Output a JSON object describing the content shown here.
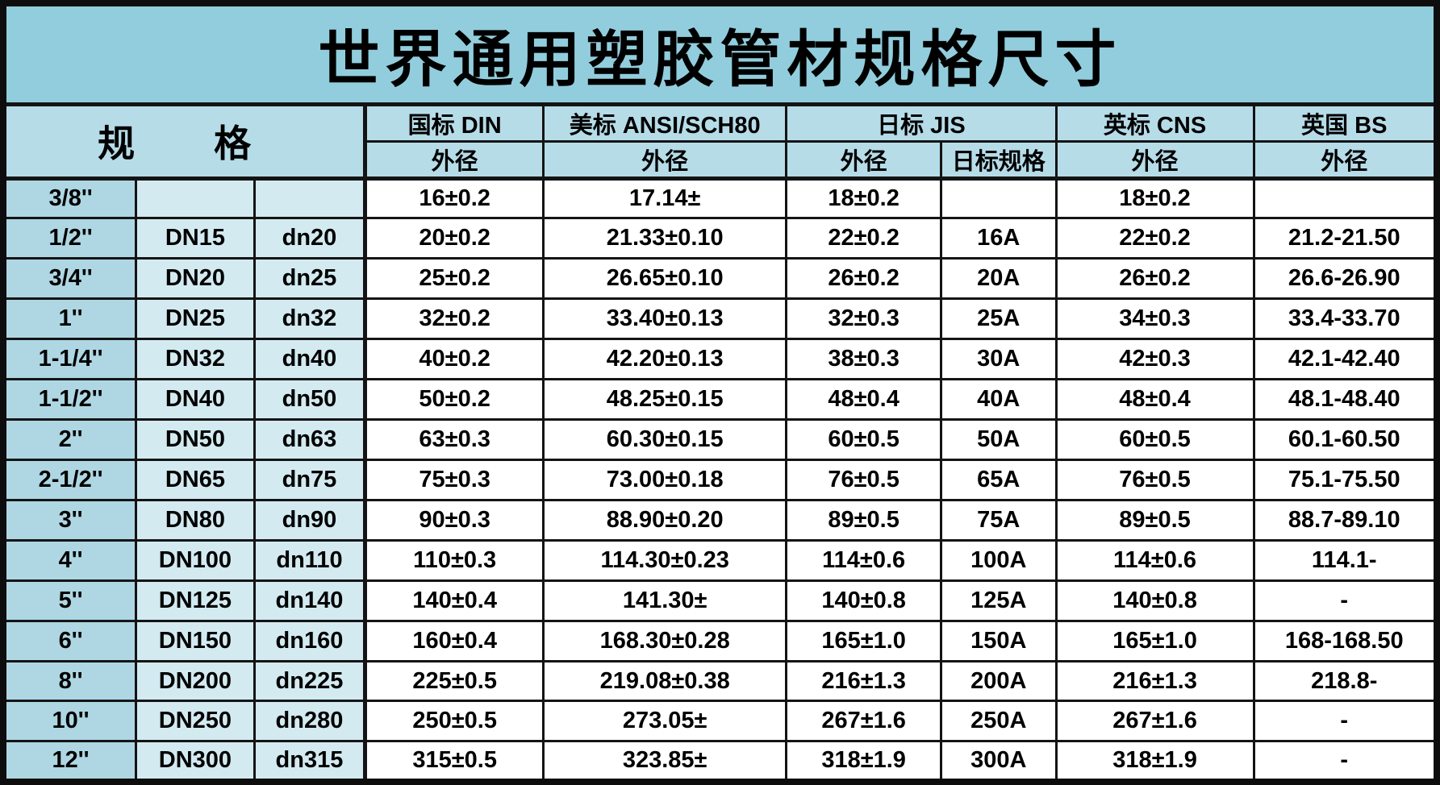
{
  "title": "世界通用塑胶管材规格尺寸",
  "table": {
    "spec_header": "规　格",
    "col_groups": [
      {
        "label": "国标 DIN",
        "subs": [
          "外径"
        ]
      },
      {
        "label": "美标 ANSI/SCH80",
        "subs": [
          "外径"
        ]
      },
      {
        "label": "日标 JIS",
        "subs": [
          "外径",
          "日标规格"
        ]
      },
      {
        "label": "英标 CNS",
        "subs": [
          "外径"
        ]
      },
      {
        "label": "英国 BS",
        "subs": [
          "外径"
        ]
      }
    ],
    "rows": [
      [
        "3/8''",
        "",
        "",
        "16±0.2",
        "17.14±",
        "18±0.2",
        "",
        "18±0.2",
        ""
      ],
      [
        "1/2''",
        "DN15",
        "dn20",
        "20±0.2",
        "21.33±0.10",
        "22±0.2",
        "16A",
        "22±0.2",
        "21.2-21.50"
      ],
      [
        "3/4''",
        "DN20",
        "dn25",
        "25±0.2",
        "26.65±0.10",
        "26±0.2",
        "20A",
        "26±0.2",
        "26.6-26.90"
      ],
      [
        "1''",
        "DN25",
        "dn32",
        "32±0.2",
        "33.40±0.13",
        "32±0.3",
        "25A",
        "34±0.3",
        "33.4-33.70"
      ],
      [
        "1-1/4''",
        "DN32",
        "dn40",
        "40±0.2",
        "42.20±0.13",
        "38±0.3",
        "30A",
        "42±0.3",
        "42.1-42.40"
      ],
      [
        "1-1/2''",
        "DN40",
        "dn50",
        "50±0.2",
        "48.25±0.15",
        "48±0.4",
        "40A",
        "48±0.4",
        "48.1-48.40"
      ],
      [
        "2''",
        "DN50",
        "dn63",
        "63±0.3",
        "60.30±0.15",
        "60±0.5",
        "50A",
        "60±0.5",
        "60.1-60.50"
      ],
      [
        "2-1/2''",
        "DN65",
        "dn75",
        "75±0.3",
        "73.00±0.18",
        "76±0.5",
        "65A",
        "76±0.5",
        "75.1-75.50"
      ],
      [
        "3''",
        "DN80",
        "dn90",
        "90±0.3",
        "88.90±0.20",
        "89±0.5",
        "75A",
        "89±0.5",
        "88.7-89.10"
      ],
      [
        "4''",
        "DN100",
        "dn110",
        "110±0.3",
        "114.30±0.23",
        "114±0.6",
        "100A",
        "114±0.6",
        "114.1-"
      ],
      [
        "5''",
        "DN125",
        "dn140",
        "140±0.4",
        "141.30±",
        "140±0.8",
        "125A",
        "140±0.8",
        "-"
      ],
      [
        "6''",
        "DN150",
        "dn160",
        "160±0.4",
        "168.30±0.28",
        "165±1.0",
        "150A",
        "165±1.0",
        "168-168.50"
      ],
      [
        "8''",
        "DN200",
        "dn225",
        "225±0.5",
        "219.08±0.38",
        "216±1.3",
        "200A",
        "216±1.3",
        "218.8-"
      ],
      [
        "10''",
        "DN250",
        "dn280",
        "250±0.5",
        "273.05±",
        "267±1.6",
        "250A",
        "267±1.6",
        "-"
      ],
      [
        "12''",
        "DN300",
        "dn315",
        "315±0.5",
        "323.85±",
        "318±1.9",
        "300A",
        "318±1.9",
        "-"
      ]
    ]
  },
  "colors": {
    "title_bg": "#92cddd",
    "header_bg": "#b6dce8",
    "col_inch_bg": "#aed7e3",
    "col_dn_bg": "#d3eaf1",
    "cell_bg": "#ffffff",
    "border": "#141414",
    "text": "#000000"
  }
}
